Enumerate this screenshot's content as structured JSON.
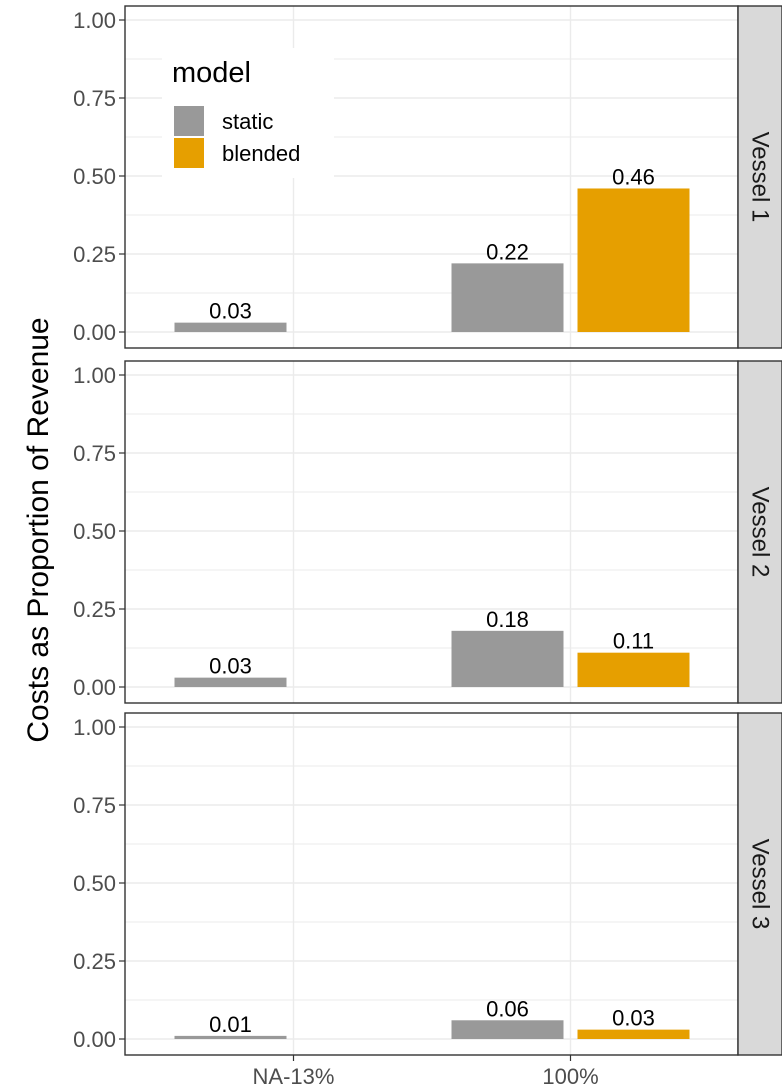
{
  "chart_data": {
    "type": "bar",
    "ylabel": "Costs as Proportion of Revenue",
    "xlabel": "",
    "categories": [
      "NA-13%",
      "100%"
    ],
    "ylim": [
      0,
      1
    ],
    "yticks": [
      "0.00",
      "0.25",
      "0.50",
      "0.75",
      "1.00"
    ],
    "legend": {
      "title": "model",
      "position": "top-left",
      "entries": [
        "static",
        "blended"
      ]
    },
    "colors": {
      "static": "#999999",
      "blended": "#E69F00",
      "strip": "#d9d9d9",
      "grid": "#ebebeb"
    },
    "grid": true,
    "panels": [
      {
        "name": "Vessel 1",
        "series": [
          {
            "name": "static",
            "values": [
              0.03,
              0.22
            ],
            "labels": [
              "0.03",
              "0.22"
            ]
          },
          {
            "name": "blended",
            "values": [
              null,
              0.46
            ],
            "labels": [
              "",
              "0.46"
            ]
          }
        ]
      },
      {
        "name": "Vessel 2",
        "series": [
          {
            "name": "static",
            "values": [
              0.03,
              0.18
            ],
            "labels": [
              "0.03",
              "0.18"
            ]
          },
          {
            "name": "blended",
            "values": [
              null,
              0.11
            ],
            "labels": [
              "",
              "0.11"
            ]
          }
        ]
      },
      {
        "name": "Vessel 3",
        "series": [
          {
            "name": "static",
            "values": [
              0.01,
              0.06
            ],
            "labels": [
              "0.01",
              "0.06"
            ]
          },
          {
            "name": "blended",
            "values": [
              null,
              0.03
            ],
            "labels": [
              "",
              "0.03"
            ]
          }
        ]
      }
    ]
  }
}
